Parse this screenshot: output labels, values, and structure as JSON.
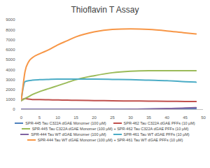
{
  "chart_data": {
    "type": "line",
    "title": "Thioflavin T Assay",
    "x": [
      0,
      0.5,
      1,
      2,
      3,
      5,
      7.5,
      10,
      12.5,
      15,
      20,
      25,
      30,
      35,
      40,
      45,
      48
    ],
    "xlim": [
      0,
      50
    ],
    "xticks": [
      0,
      5,
      10,
      15,
      20,
      25,
      30,
      35,
      40,
      45,
      50
    ],
    "ylim": [
      0,
      9000
    ],
    "yticks": [
      0,
      1000,
      2000,
      3000,
      4000,
      5000,
      6000,
      7000,
      8000,
      9000
    ],
    "grid": false,
    "legend": "bottom",
    "series": [
      {
        "name": "SPR-445 Tau C322A dGAE Monomer (100 µM)",
        "color": "#4f81bd",
        "values": [
          20,
          20,
          20,
          20,
          20,
          20,
          20,
          20,
          20,
          20,
          20,
          20,
          30,
          50,
          70,
          90,
          100
        ]
      },
      {
        "name": "SPR-462 Tau C322A dGAE PFFs (10 µM)",
        "color": "#c0504d",
        "values": [
          900,
          1050,
          1100,
          1050,
          1000,
          1000,
          980,
          960,
          950,
          930,
          900,
          880,
          860,
          850,
          830,
          810,
          800
        ]
      },
      {
        "name": "SPR-445 Tau C322A dGAE Monomer (100 µM) + SPR-462 Tau C322A dGAE PFFs (10 µM)",
        "color": "#9bbb59",
        "values": [
          900,
          1000,
          1100,
          1300,
          1500,
          1800,
          2100,
          2400,
          2700,
          3000,
          3400,
          3700,
          3850,
          3900,
          3900,
          3900,
          3900
        ]
      },
      {
        "name": "SPR-444 Tau WT dGAE Monomer (100 µM)",
        "color": "#8064a2",
        "values": [
          10,
          10,
          10,
          10,
          10,
          10,
          10,
          10,
          10,
          10,
          10,
          10,
          30,
          60,
          100,
          150,
          200
        ]
      },
      {
        "name": "SPR-461 Tau WT dGAE PFFs (10 µM)",
        "color": "#4bacc6",
        "values": [
          1000,
          2200,
          2800,
          2900,
          2950,
          3000,
          3030,
          3050,
          3050,
          3050,
          3050,
          3030,
          3000,
          2950,
          2900,
          2800,
          2750
        ]
      },
      {
        "name": "SPR-444 Tau WT dGAE Monomer (100 µM) + SPR-461 Tau WT dGAE PFFs (10 µM)",
        "color": "#f79646",
        "values": [
          1000,
          2500,
          3800,
          4800,
          5200,
          5600,
          6000,
          6500,
          6900,
          7300,
          7800,
          8050,
          8100,
          8050,
          7900,
          7700,
          7600
        ]
      }
    ]
  }
}
